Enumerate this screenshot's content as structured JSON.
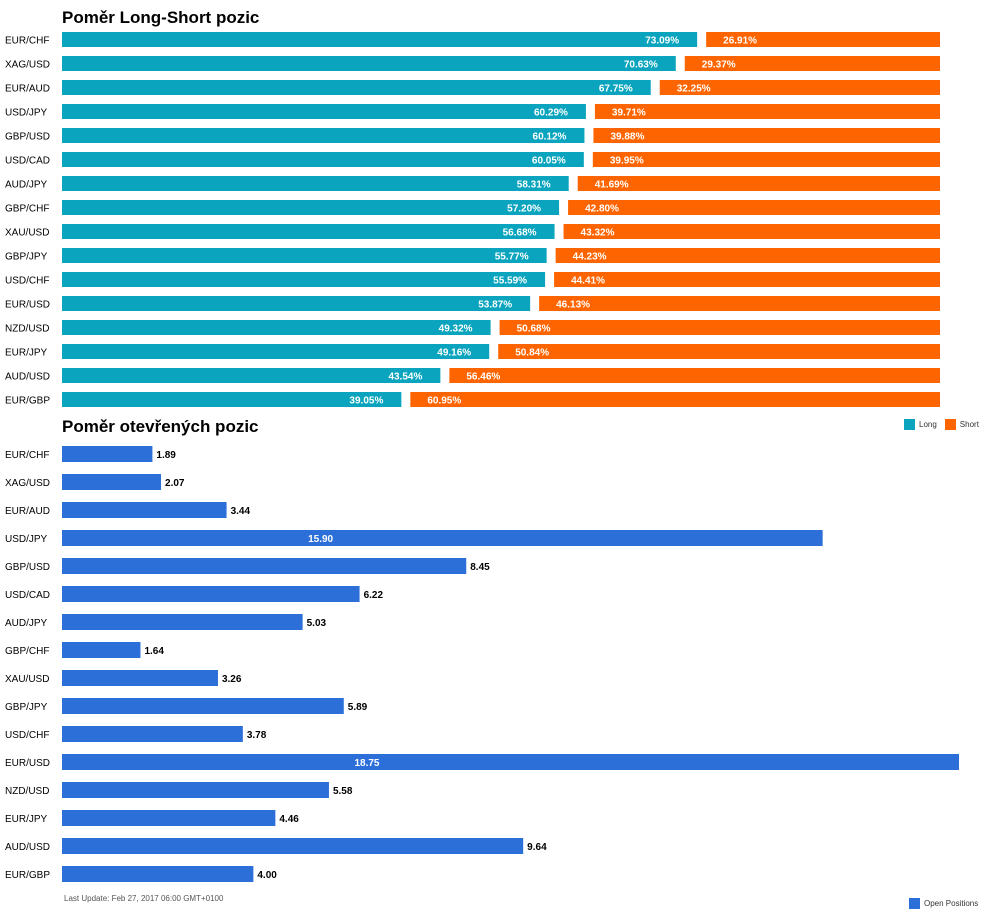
{
  "charts": {
    "ratio_title": "Poměr Long-Short pozic",
    "open_title": "Poměr otevřených pozic",
    "legend_long": "Long",
    "legend_short": "Short",
    "legend_open": "Open Positions",
    "footer": "Last Update: Feb 27, 2017 06:00 GMT+0100"
  },
  "colors": {
    "long": "#0aa4be",
    "short": "#fe6500",
    "open": "#2c6fd9"
  },
  "chart_data": [
    {
      "type": "bar",
      "orientation": "horizontal",
      "stacked": true,
      "title": "Poměr Long-Short pozic",
      "categories": [
        "EUR/CHF",
        "XAG/USD",
        "EUR/AUD",
        "USD/JPY",
        "GBP/USD",
        "USD/CAD",
        "AUD/JPY",
        "GBP/CHF",
        "XAU/USD",
        "GBP/JPY",
        "USD/CHF",
        "EUR/USD",
        "NZD/USD",
        "EUR/JPY",
        "AUD/USD",
        "EUR/GBP"
      ],
      "series": [
        {
          "name": "Long",
          "values": [
            73.09,
            70.63,
            67.75,
            60.29,
            60.12,
            60.05,
            58.31,
            57.2,
            56.68,
            55.77,
            55.59,
            53.87,
            49.32,
            49.16,
            43.54,
            39.05
          ],
          "labels": [
            "73.09%",
            "70.63%",
            "67.75%",
            "60.29%",
            "60.12%",
            "60.05%",
            "58.31%",
            "57.20%",
            "56.68%",
            "55.77%",
            "55.59%",
            "53.87%",
            "49.32%",
            "49.16%",
            "43.54%",
            "39.05%"
          ]
        },
        {
          "name": "Short",
          "values": [
            26.91,
            29.37,
            32.25,
            39.71,
            39.88,
            39.95,
            41.69,
            42.8,
            43.32,
            44.23,
            44.41,
            46.13,
            50.68,
            50.84,
            56.46,
            60.95
          ],
          "labels": [
            "26.91%",
            "29.37%",
            "32.25%",
            "39.71%",
            "39.88%",
            "39.95%",
            "41.69%",
            "42.80%",
            "43.32%",
            "44.23%",
            "44.41%",
            "46.13%",
            "50.68%",
            "50.84%",
            "56.46%",
            "60.95%"
          ]
        }
      ],
      "xlim": [
        0,
        100
      ],
      "legend": "bottom-right"
    },
    {
      "type": "bar",
      "orientation": "horizontal",
      "title": "Poměr otevřených pozic",
      "categories": [
        "EUR/CHF",
        "XAG/USD",
        "EUR/AUD",
        "USD/JPY",
        "GBP/USD",
        "USD/CAD",
        "AUD/JPY",
        "GBP/CHF",
        "XAU/USD",
        "GBP/JPY",
        "USD/CHF",
        "EUR/USD",
        "NZD/USD",
        "EUR/JPY",
        "AUD/USD",
        "EUR/GBP"
      ],
      "series": [
        {
          "name": "Open Positions",
          "values": [
            1.89,
            2.07,
            3.44,
            15.9,
            8.45,
            6.22,
            5.03,
            1.64,
            3.26,
            5.89,
            3.78,
            18.75,
            5.58,
            4.46,
            9.64,
            4.0
          ],
          "labels": [
            "1.89",
            "2.07",
            "3.44",
            "15.90",
            "8.45",
            "6.22",
            "5.03",
            "1.64",
            "3.26",
            "5.89",
            "3.78",
            "18.75",
            "5.58",
            "4.46",
            "9.64",
            "4.00"
          ]
        }
      ],
      "xlim": [
        0,
        18.75
      ],
      "legend": "bottom-right"
    }
  ]
}
